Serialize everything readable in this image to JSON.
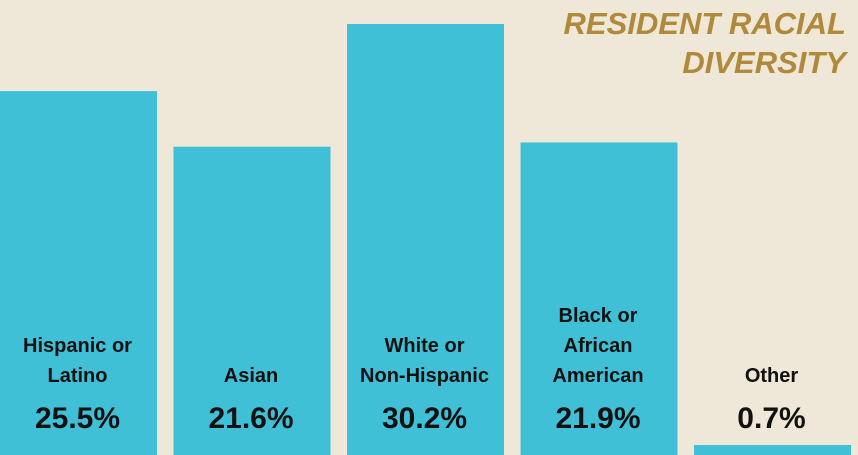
{
  "chart_data": {
    "type": "bar",
    "title": [
      "RESIDENT RACIAL",
      "DIVERSITY"
    ],
    "categories": [
      [
        "Hispanic or",
        "Latino"
      ],
      [
        "Asian"
      ],
      [
        "White or",
        "Non-Hispanic"
      ],
      [
        "Black or",
        "African",
        "American"
      ],
      [
        "Other"
      ]
    ],
    "values": [
      25.5,
      21.6,
      30.2,
      21.9,
      0.7
    ],
    "value_labels": [
      "25.5%",
      "21.6%",
      "30.2%",
      "21.9%",
      "0.7%"
    ],
    "unit": "%",
    "ylim": [
      0,
      36
    ],
    "grid": false,
    "legend": "none"
  },
  "colors": {
    "background": "#efe7d7",
    "bar": "#3fc0d6",
    "title": "#b08a3a",
    "text": "#111111"
  }
}
